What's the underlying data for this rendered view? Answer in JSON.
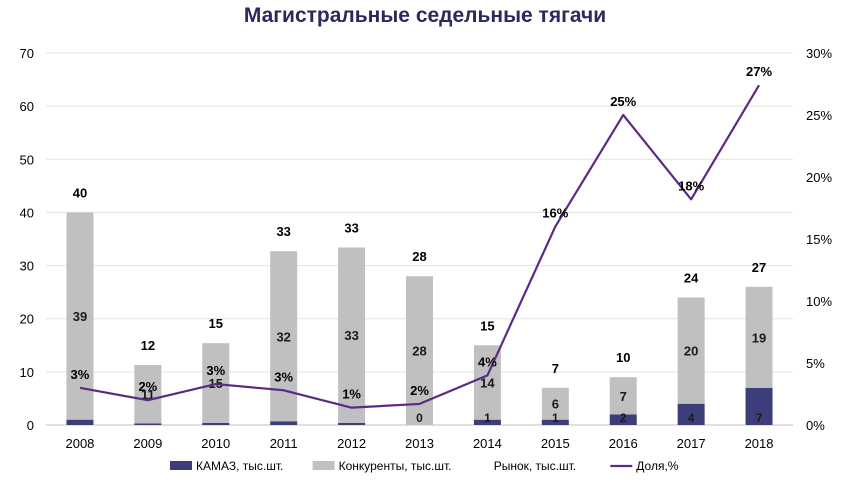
{
  "chart_data": {
    "type": "bar",
    "title": "Магистральные седельные тягачи",
    "categories": [
      "2008",
      "2009",
      "2010",
      "2011",
      "2012",
      "2013",
      "2014",
      "2015",
      "2016",
      "2017",
      "2018"
    ],
    "series": [
      {
        "name": "КАМАЗ, тыс.шт.",
        "kind": "bar-stacked",
        "color": "#3d3d7a",
        "values": [
          1,
          0.3,
          0.4,
          0.7,
          0.4,
          0,
          1,
          1,
          2,
          4,
          7
        ],
        "labels": [
          "",
          "",
          "",
          "",
          "",
          "0",
          "1",
          "1",
          "2",
          "4",
          "7"
        ]
      },
      {
        "name": "Конкуренты, тыс.шт.",
        "kind": "bar-stacked",
        "color": "#c0c0c0",
        "values": [
          39,
          11,
          15,
          32,
          33,
          28,
          14,
          6,
          7,
          20,
          19
        ],
        "labels": [
          "39",
          "11",
          "15",
          "32",
          "33",
          "28",
          "14",
          "6",
          "7",
          "20",
          "19"
        ]
      },
      {
        "name": "Рынок, тыс.шт.",
        "kind": "total-label",
        "values": [
          40,
          12,
          15,
          33,
          33,
          28,
          15,
          7,
          10,
          24,
          27
        ],
        "labels": [
          "40",
          "12",
          "15",
          "33",
          "33",
          "28",
          "15",
          "7",
          "10",
          "24",
          "27"
        ]
      },
      {
        "name": "Доля,%",
        "kind": "line",
        "axis": "right",
        "color": "#5b2a86",
        "values": [
          3,
          2,
          3.3,
          2.8,
          1.4,
          1.7,
          4,
          16,
          25,
          18.2,
          27.4
        ],
        "labels": [
          "3%",
          "2%",
          "3%",
          "3%",
          "1%",
          "2%",
          "4%",
          "16%",
          "25%",
          "18%",
          "27%"
        ]
      }
    ],
    "y_left": {
      "min": 0,
      "max": 70,
      "ticks": [
        "0",
        "10",
        "20",
        "30",
        "40",
        "50",
        "60",
        "70"
      ]
    },
    "y_right": {
      "min": 0,
      "max": 30,
      "ticks": [
        "0%",
        "5%",
        "10%",
        "15%",
        "20%",
        "25%",
        "30%"
      ]
    },
    "grid": true,
    "legend_position": "bottom"
  }
}
